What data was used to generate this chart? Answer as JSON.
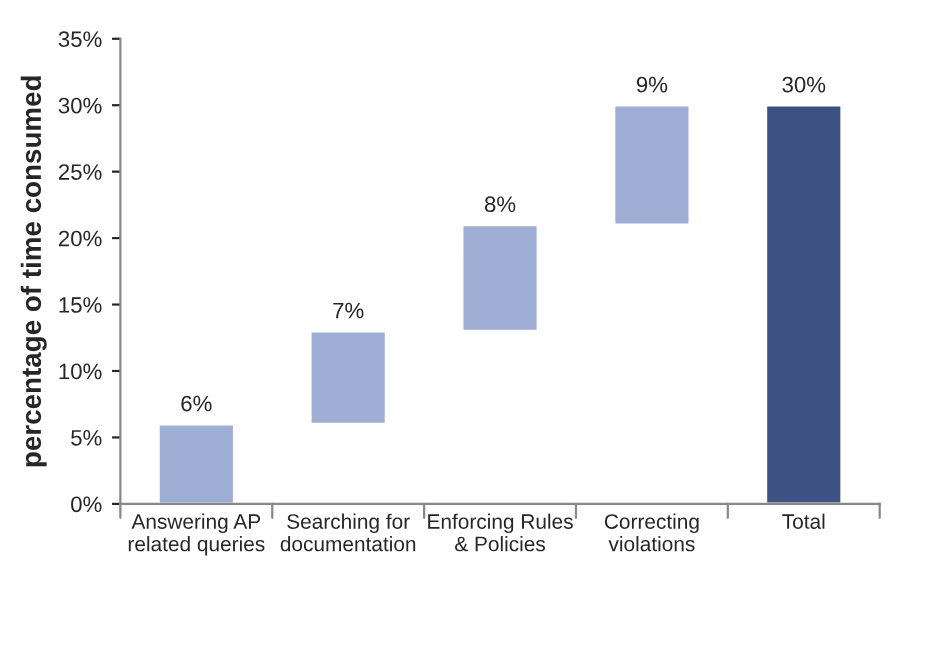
{
  "chart_data": {
    "type": "bar",
    "ylabel": "percentage of time consumed",
    "categories": [
      "Answering AP\nrelated queries",
      "Searching for\ndocumentation",
      "Enforcing Rules\n& Policies",
      "Correcting\nviolations",
      "Total"
    ],
    "values": [
      6,
      7,
      8,
      9,
      30
    ],
    "base": [
      0,
      6,
      13,
      21,
      0
    ],
    "colors": [
      "#9dadd3",
      "#9dadd3",
      "#9dadd3",
      "#9dadd3",
      "#3d5183"
    ],
    "value_labels": [
      "6%",
      "7%",
      "8%",
      "9%",
      "30%"
    ],
    "ylim": [
      0,
      35
    ],
    "yticks": [
      {
        "value": 0,
        "label": "0%"
      },
      {
        "value": 5,
        "label": "5%"
      },
      {
        "value": 10,
        "label": "10%"
      },
      {
        "value": 15,
        "label": "15%"
      },
      {
        "value": 20,
        "label": "20%"
      },
      {
        "value": 25,
        "label": "25%"
      },
      {
        "value": 30,
        "label": "30%"
      },
      {
        "value": 35,
        "label": "35%"
      }
    ],
    "grid": false,
    "legend": false
  }
}
